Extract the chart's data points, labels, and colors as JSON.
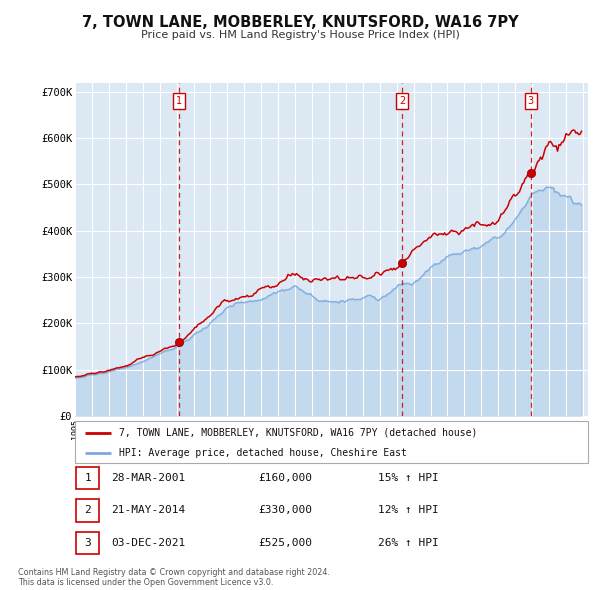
{
  "title": "7, TOWN LANE, MOBBERLEY, KNUTSFORD, WA16 7PY",
  "subtitle": "Price paid vs. HM Land Registry's House Price Index (HPI)",
  "background_color": "#ffffff",
  "plot_bg_color": "#dce9f5",
  "red_line_color": "#cc0000",
  "blue_line_color": "#7aaadd",
  "grid_color": "#ffffff",
  "vline_color": "#cc0000",
  "ylim": [
    0,
    700000
  ],
  "yticks": [
    0,
    100000,
    200000,
    300000,
    400000,
    500000,
    600000,
    700000
  ],
  "ytick_labels": [
    "£0",
    "£100K",
    "£200K",
    "£300K",
    "£400K",
    "£500K",
    "£600K",
    "£700K"
  ],
  "sale_prices": [
    160000,
    330000,
    525000
  ],
  "sale_labels": [
    "1",
    "2",
    "3"
  ],
  "sale_pct_hpi": [
    "15% ↑ HPI",
    "12% ↑ HPI",
    "26% ↑ HPI"
  ],
  "sale_date_labels": [
    "28-MAR-2001",
    "21-MAY-2014",
    "03-DEC-2021"
  ],
  "sale_price_labels": [
    "£160,000",
    "£330,000",
    "£525,000"
  ],
  "legend_red_label": "7, TOWN LANE, MOBBERLEY, KNUTSFORD, WA16 7PY (detached house)",
  "legend_blue_label": "HPI: Average price, detached house, Cheshire East",
  "footer_line1": "Contains HM Land Registry data © Crown copyright and database right 2024.",
  "footer_line2": "This data is licensed under the Open Government Licence v3.0."
}
